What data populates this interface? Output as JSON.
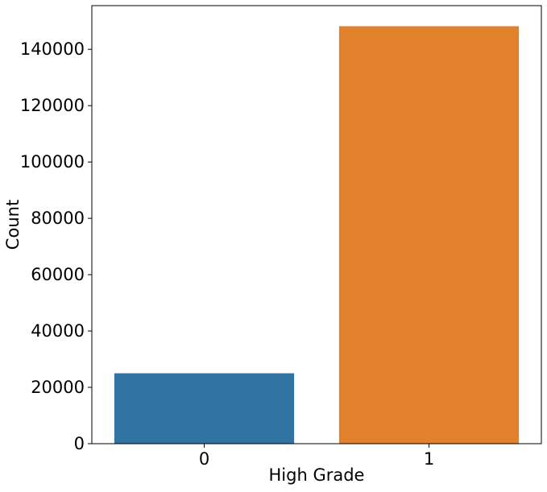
{
  "chart_data": {
    "type": "bar",
    "title": "",
    "xlabel": "High Grade",
    "ylabel": "Count",
    "categories": [
      "0",
      "1"
    ],
    "values": [
      25000,
      148200
    ],
    "colors": [
      "#3274a1",
      "#e1812c"
    ],
    "ylim": [
      0,
      155500
    ],
    "yticks": [
      0,
      20000,
      40000,
      60000,
      80000,
      100000,
      120000,
      140000
    ],
    "ytick_labels": [
      "0",
      "20000",
      "40000",
      "60000",
      "80000",
      "100000",
      "120000",
      "140000"
    ],
    "grid": false,
    "legend": "none"
  }
}
